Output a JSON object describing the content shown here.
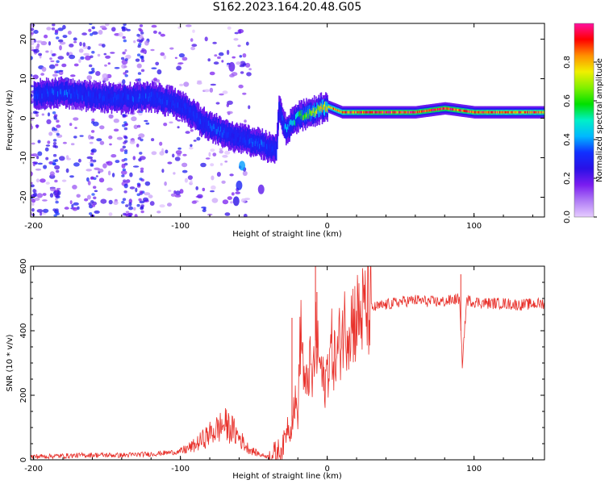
{
  "figure_title": "S162.2023.164.20.48.G05",
  "colors": {
    "snr_line": "#e8302a",
    "colormap": [
      "#e6ccff",
      "#b07cf5",
      "#7a1cf0",
      "#2a10e6",
      "#1030ff",
      "#00b8ff",
      "#00f0c8",
      "#00e000",
      "#80f000",
      "#f0f000",
      "#ff9000",
      "#ff0000",
      "#ff10a0"
    ]
  },
  "chart_data": [
    {
      "type": "heatmap",
      "xlabel": "Height of straight line (km)",
      "ylabel": "Frequency (Hz)",
      "xlim": [
        -202,
        148
      ],
      "ylim": [
        -25,
        24
      ],
      "xticks": [
        -200,
        -100,
        0,
        100
      ],
      "yticks": [
        -20,
        -10,
        0,
        10,
        20
      ],
      "colorbar": {
        "label": "Normalized spectral amplitude",
        "range": [
          0,
          1
        ],
        "ticks": [
          0.0,
          0.2,
          0.4,
          0.6,
          0.8
        ]
      },
      "ridge": {
        "x": [
          -200,
          -180,
          -160,
          -140,
          -120,
          -105,
          -95,
          -85,
          -75,
          -65,
          -55,
          -45,
          -40,
          -35,
          -33,
          -30,
          -28,
          -25,
          -20,
          -15,
          -10,
          -5,
          0,
          10,
          30,
          60,
          80,
          90,
          100,
          120,
          148
        ],
        "y": [
          6,
          6.5,
          5.5,
          5,
          5.5,
          4,
          2,
          -1,
          -3,
          -4.5,
          -5.5,
          -6.5,
          -7.5,
          -8,
          3,
          -2,
          -3,
          -1.5,
          0.5,
          1,
          1.5,
          2.5,
          3,
          1.5,
          1.5,
          1.5,
          2.5,
          2,
          1.5,
          1.5,
          1.5
        ],
        "amplitude": [
          0.3,
          0.35,
          0.3,
          0.3,
          0.35,
          0.3,
          0.32,
          0.3,
          0.35,
          0.3,
          0.32,
          0.35,
          0.3,
          0.3,
          0.25,
          0.35,
          0.4,
          0.45,
          0.55,
          0.6,
          0.65,
          0.7,
          0.75,
          0.85,
          0.9,
          0.9,
          0.92,
          0.9,
          0.88,
          0.85,
          0.85
        ]
      }
    },
    {
      "type": "line",
      "xlabel": "Height of straight line (km)",
      "ylabel": "SNR (10 * v/v)",
      "xlim": [
        -202,
        148
      ],
      "ylim": [
        0,
        600
      ],
      "xticks": [
        -200,
        -100,
        0,
        100
      ],
      "yticks": [
        0,
        200,
        400,
        600
      ],
      "series": [
        {
          "x": [
            -202,
            -180,
            -160,
            -140,
            -120,
            -100,
            -90,
            -80,
            -75,
            -70,
            -65,
            -60,
            -55,
            -50,
            -45,
            -40,
            -35,
            -30,
            -27,
            -25,
            -22,
            -20,
            -18,
            -15,
            -12,
            -10,
            -8,
            -5,
            -2,
            0,
            3,
            6,
            10,
            15,
            20,
            25,
            30,
            40,
            50,
            60,
            70,
            80,
            90,
            92,
            95,
            100,
            110,
            120,
            130,
            148
          ],
          "y": [
            10,
            12,
            15,
            14,
            18,
            25,
            45,
            80,
            95,
            110,
            95,
            70,
            40,
            25,
            15,
            10,
            20,
            40,
            110,
            90,
            180,
            140,
            420,
            200,
            300,
            230,
            370,
            300,
            220,
            280,
            350,
            300,
            400,
            430,
            440,
            460,
            470,
            480,
            490,
            495,
            490,
            490,
            500,
            300,
            495,
            490,
            485,
            485,
            480,
            485
          ]
        }
      ],
      "spikes": [
        {
          "x": -24,
          "y": 440
        },
        {
          "x": -8,
          "y": 600
        },
        {
          "x": -7,
          "y": 520
        },
        {
          "x": 91,
          "y": 575
        },
        {
          "x": 92,
          "y": 300
        }
      ]
    }
  ]
}
